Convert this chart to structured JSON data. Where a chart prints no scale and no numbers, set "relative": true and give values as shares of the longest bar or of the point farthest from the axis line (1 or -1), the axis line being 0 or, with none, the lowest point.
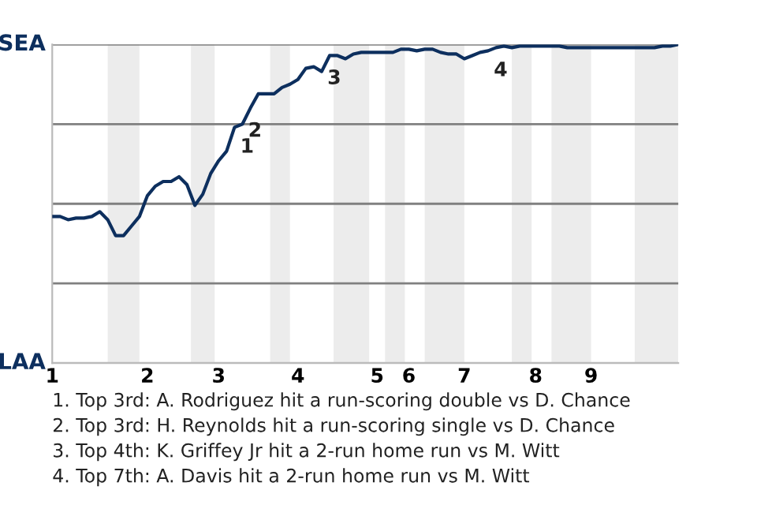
{
  "chart_data": {
    "type": "line",
    "categories": [
      "1",
      null,
      null,
      null,
      null,
      null,
      null,
      null,
      null,
      null,
      null,
      null,
      "2",
      null,
      null,
      null,
      null,
      null,
      null,
      null,
      null,
      "3",
      null,
      null,
      null,
      null,
      null,
      null,
      null,
      null,
      null,
      "4",
      null,
      null,
      null,
      null,
      null,
      null,
      null,
      null,
      null,
      "5",
      null,
      null,
      null,
      "6",
      null,
      null,
      null,
      null,
      null,
      null,
      "7",
      null,
      null,
      null,
      null,
      null,
      null,
      null,
      null,
      "8",
      null,
      null,
      null,
      null,
      null,
      null,
      "9",
      null,
      null,
      null,
      null,
      null,
      null,
      null,
      null,
      null,
      null,
      null
    ],
    "relative": true,
    "series": [
      {
        "color": "#0d2f5e",
        "values": [
          0.46,
          0.46,
          0.45,
          0.455,
          0.455,
          0.46,
          0.475,
          0.45,
          0.4,
          0.4,
          0.43,
          0.46,
          0.525,
          0.555,
          0.57,
          0.57,
          0.585,
          0.56,
          0.495,
          0.53,
          0.595,
          0.635,
          0.665,
          0.74,
          0.75,
          0.8,
          0.845,
          0.845,
          0.845,
          0.865,
          0.875,
          0.89,
          0.925,
          0.93,
          0.915,
          0.965,
          0.965,
          0.955,
          0.97,
          0.975,
          0.975,
          0.975,
          0.975,
          0.975,
          0.985,
          0.985,
          0.98,
          0.985,
          0.985,
          0.975,
          0.97,
          0.97,
          0.955,
          0.965,
          0.975,
          0.98,
          0.99,
          0.995,
          0.99,
          0.995,
          0.995,
          0.995,
          0.995,
          0.995,
          0.995,
          0.99,
          0.99,
          0.99,
          0.99,
          0.99,
          0.99,
          0.99,
          0.99,
          0.99,
          0.99,
          0.99,
          0.99,
          0.995,
          0.995,
          1
        ]
      }
    ],
    "ref_lines": [
      {
        "axis": "y",
        "value": 0,
        "label": "LAA",
        "color": "#bbbbbb"
      },
      {
        "axis": "y",
        "value": 0.25,
        "label": null,
        "color": "#808080"
      },
      {
        "axis": "y",
        "value": 0.5,
        "label": null,
        "color": "#808080"
      },
      {
        "axis": "y",
        "value": 0.75,
        "label": null,
        "color": "#808080"
      },
      {
        "axis": "y",
        "value": 1,
        "label": "SEA",
        "color": "#808080"
      }
    ],
    "annotations": [
      {
        "text": "1",
        "y": 0.75
      },
      {
        "text": "2",
        "y": 0.8
      },
      {
        "text": "3",
        "y": 0.965
      },
      {
        "text": "4",
        "y": 0.99
      },
      "1. Top 3rd: A. Rodriguez hit a run-scoring double vs D. Chance",
      "2. Top 3rd: H. Reynolds hit a run-scoring single vs D. Chance",
      "3. Top 4th: K. Griffey Jr hit a 2-run home run vs M. Witt",
      "4. Top 7th: A. Davis hit a 2-run home run vs M. Witt"
    ]
  }
}
